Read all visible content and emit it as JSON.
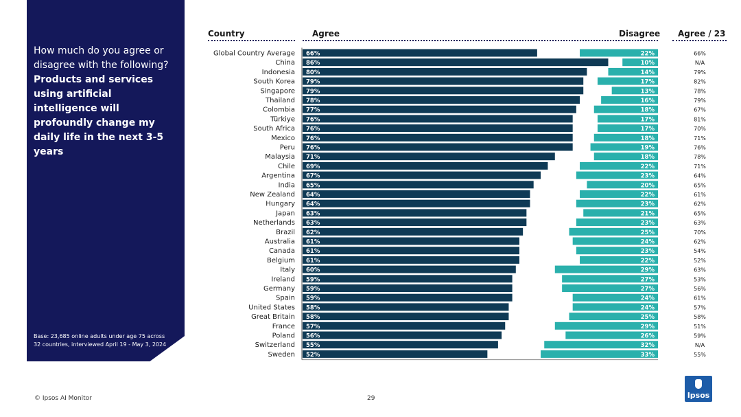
{
  "panel": {
    "question_intro": "How much do you agree or disagree with the following?",
    "question_bold": "Products and services using artificial intelligence will profoundly change my daily life in the next 3-5 years",
    "base_note": "Base: 23,685 online adults under age 75 across 32 countries, interviewed April 19 - May 3, 2024"
  },
  "headers": {
    "country": "Country",
    "agree": "Agree",
    "disagree": "Disagree",
    "agree23": "Agree / 23"
  },
  "footer": {
    "source": "© Ipsos AI Monitor",
    "page": "29",
    "logo": "Ipsos"
  },
  "colors": {
    "agree": "#0f3a55",
    "disagree": "#2ab0ac",
    "panel": "#14185a"
  },
  "chart_data": {
    "type": "bar",
    "orientation": "horizontal-diverging",
    "categories": [
      "Global Country Average",
      "China",
      "Indonesia",
      "South Korea",
      "Singapore",
      "Thailand",
      "Colombia",
      "Türkiye",
      "South Africa",
      "Mexico",
      "Peru",
      "Malaysia",
      "Chile",
      "Argentina",
      "India",
      "New Zealand",
      "Hungary",
      "Japan",
      "Netherlands",
      "Brazil",
      "Australia",
      "Canada",
      "Belgium",
      "Italy",
      "Ireland",
      "Germany",
      "Spain",
      "United States",
      "Great Britain",
      "France",
      "Poland",
      "Switzerland",
      "Sweden"
    ],
    "series": [
      {
        "name": "Agree",
        "values": [
          66,
          86,
          80,
          79,
          79,
          78,
          77,
          76,
          76,
          76,
          76,
          71,
          69,
          67,
          65,
          64,
          64,
          63,
          63,
          62,
          61,
          61,
          61,
          60,
          59,
          59,
          59,
          58,
          58,
          57,
          56,
          55,
          52
        ]
      },
      {
        "name": "Disagree",
        "values": [
          22,
          10,
          14,
          17,
          13,
          16,
          18,
          17,
          17,
          18,
          19,
          18,
          22,
          23,
          20,
          22,
          23,
          21,
          23,
          25,
          24,
          23,
          22,
          29,
          27,
          27,
          24,
          24,
          25,
          29,
          26,
          32,
          33
        ]
      }
    ],
    "agree_2023": [
      "66%",
      "N/A",
      "79%",
      "82%",
      "78%",
      "79%",
      "67%",
      "81%",
      "70%",
      "71%",
      "76%",
      "78%",
      "71%",
      "64%",
      "65%",
      "61%",
      "62%",
      "65%",
      "63%",
      "70%",
      "62%",
      "54%",
      "52%",
      "63%",
      "53%",
      "56%",
      "61%",
      "57%",
      "58%",
      "51%",
      "59%",
      "N/A",
      "55%"
    ],
    "xlim": [
      0,
      100
    ]
  }
}
